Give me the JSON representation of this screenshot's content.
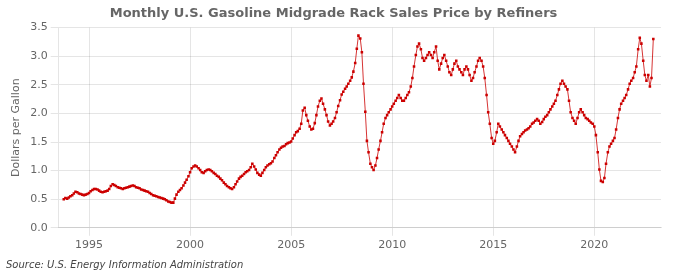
{
  "chart_data": {
    "type": "line",
    "title": "Monthly U.S. Gasoline Midgrade Rack Sales Price by Refiners",
    "y_label": "Dollars per Gallon",
    "annotations": [
      "Source: U.S. Energy Information Administration"
    ],
    "color": "#cc0000",
    "marker": "square",
    "line_style": "solid",
    "grid": true,
    "xlim": [
      1993.5,
      2023.3
    ],
    "xticks": [
      1995,
      2000,
      2005,
      2010,
      2015,
      2020
    ],
    "ylim": [
      0.0,
      3.5
    ],
    "yticks": [
      {
        "value": 0.0,
        "label": "0.0"
      },
      0.5,
      {
        "value": 1.0,
        "label": "1.0"
      },
      1.5,
      {
        "value": 2.0,
        "label": "2.0"
      },
      2.5,
      {
        "value": 3.0,
        "label": "3.0"
      },
      3.5
    ],
    "x": [
      1993.75,
      1993.83,
      1993.92,
      1994.0,
      1994.08,
      1994.17,
      1994.25,
      1994.33,
      1994.42,
      1994.5,
      1994.58,
      1994.67,
      1994.75,
      1994.83,
      1994.92,
      1995.0,
      1995.08,
      1995.17,
      1995.25,
      1995.33,
      1995.42,
      1995.5,
      1995.58,
      1995.67,
      1995.75,
      1995.83,
      1995.92,
      1996.0,
      1996.08,
      1996.17,
      1996.25,
      1996.33,
      1996.42,
      1996.5,
      1996.58,
      1996.67,
      1996.75,
      1996.83,
      1996.92,
      1997.0,
      1997.08,
      1997.17,
      1997.25,
      1997.33,
      1997.42,
      1997.5,
      1997.58,
      1997.67,
      1997.75,
      1997.83,
      1997.92,
      1998.0,
      1998.08,
      1998.17,
      1998.25,
      1998.33,
      1998.42,
      1998.5,
      1998.58,
      1998.67,
      1998.75,
      1998.83,
      1998.92,
      1999.0,
      1999.08,
      1999.17,
      1999.25,
      1999.33,
      1999.42,
      1999.5,
      1999.58,
      1999.67,
      1999.75,
      1999.83,
      1999.92,
      2000.0,
      2000.08,
      2000.17,
      2000.25,
      2000.33,
      2000.42,
      2000.5,
      2000.58,
      2000.67,
      2000.75,
      2000.83,
      2000.92,
      2001.0,
      2001.08,
      2001.17,
      2001.25,
      2001.33,
      2001.42,
      2001.5,
      2001.58,
      2001.67,
      2001.75,
      2001.83,
      2001.92,
      2002.0,
      2002.08,
      2002.17,
      2002.25,
      2002.33,
      2002.42,
      2002.5,
      2002.58,
      2002.67,
      2002.75,
      2002.83,
      2002.92,
      2003.0,
      2003.08,
      2003.17,
      2003.25,
      2003.33,
      2003.42,
      2003.5,
      2003.58,
      2003.67,
      2003.75,
      2003.83,
      2003.92,
      2004.0,
      2004.08,
      2004.17,
      2004.25,
      2004.33,
      2004.42,
      2004.5,
      2004.58,
      2004.67,
      2004.75,
      2004.83,
      2004.92,
      2005.0,
      2005.08,
      2005.17,
      2005.25,
      2005.33,
      2005.42,
      2005.5,
      2005.58,
      2005.67,
      2005.75,
      2005.83,
      2005.92,
      2006.0,
      2006.08,
      2006.17,
      2006.25,
      2006.33,
      2006.42,
      2006.5,
      2006.58,
      2006.67,
      2006.75,
      2006.83,
      2006.92,
      2007.0,
      2007.08,
      2007.17,
      2007.25,
      2007.33,
      2007.42,
      2007.5,
      2007.58,
      2007.67,
      2007.75,
      2007.83,
      2007.92,
      2008.0,
      2008.08,
      2008.17,
      2008.25,
      2008.33,
      2008.42,
      2008.5,
      2008.58,
      2008.67,
      2008.75,
      2008.83,
      2008.92,
      2009.0,
      2009.08,
      2009.17,
      2009.25,
      2009.33,
      2009.42,
      2009.5,
      2009.58,
      2009.67,
      2009.75,
      2009.83,
      2009.92,
      2010.0,
      2010.08,
      2010.17,
      2010.25,
      2010.33,
      2010.42,
      2010.5,
      2010.58,
      2010.67,
      2010.75,
      2010.83,
      2010.92,
      2011.0,
      2011.08,
      2011.17,
      2011.25,
      2011.33,
      2011.42,
      2011.5,
      2011.58,
      2011.67,
      2011.75,
      2011.83,
      2011.92,
      2012.0,
      2012.08,
      2012.17,
      2012.25,
      2012.33,
      2012.42,
      2012.5,
      2012.58,
      2012.67,
      2012.75,
      2012.83,
      2012.92,
      2013.0,
      2013.08,
      2013.17,
      2013.25,
      2013.33,
      2013.42,
      2013.5,
      2013.58,
      2013.67,
      2013.75,
      2013.83,
      2013.92,
      2014.0,
      2014.08,
      2014.17,
      2014.25,
      2014.33,
      2014.42,
      2014.5,
      2014.58,
      2014.67,
      2014.75,
      2014.83,
      2014.92,
      2015.0,
      2015.08,
      2015.17,
      2015.25,
      2015.33,
      2015.42,
      2015.5,
      2015.58,
      2015.67,
      2015.75,
      2015.83,
      2015.92,
      2016.0,
      2016.08,
      2016.17,
      2016.25,
      2016.33,
      2016.42,
      2016.5,
      2016.58,
      2016.67,
      2016.75,
      2016.83,
      2016.92,
      2017.0,
      2017.08,
      2017.17,
      2017.25,
      2017.33,
      2017.42,
      2017.5,
      2017.58,
      2017.67,
      2017.75,
      2017.83,
      2017.92,
      2018.0,
      2018.08,
      2018.17,
      2018.25,
      2018.33,
      2018.42,
      2018.5,
      2018.58,
      2018.67,
      2018.75,
      2018.83,
      2018.92,
      2019.0,
      2019.08,
      2019.17,
      2019.25,
      2019.33,
      2019.42,
      2019.5,
      2019.58,
      2019.67,
      2019.75,
      2019.83,
      2019.92,
      2020.0,
      2020.08,
      2020.17,
      2020.25,
      2020.33,
      2020.42,
      2020.5,
      2020.58,
      2020.67,
      2020.75,
      2020.83,
      2020.92,
      2021.0,
      2021.08,
      2021.17,
      2021.25,
      2021.33,
      2021.42,
      2021.5,
      2021.58,
      2021.67,
      2021.75,
      2021.83,
      2021.92,
      2022.0,
      2022.08,
      2022.17,
      2022.25,
      2022.33,
      2022.42,
      2022.5,
      2022.58,
      2022.67,
      2022.75,
      2022.83,
      2022.92
    ],
    "values": [
      0.5,
      0.52,
      0.51,
      0.53,
      0.55,
      0.57,
      0.6,
      0.63,
      0.62,
      0.6,
      0.59,
      0.58,
      0.57,
      0.58,
      0.59,
      0.61,
      0.64,
      0.66,
      0.68,
      0.68,
      0.67,
      0.65,
      0.63,
      0.62,
      0.63,
      0.64,
      0.65,
      0.68,
      0.73,
      0.76,
      0.75,
      0.73,
      0.71,
      0.7,
      0.69,
      0.68,
      0.69,
      0.7,
      0.71,
      0.72,
      0.73,
      0.74,
      0.73,
      0.71,
      0.7,
      0.69,
      0.67,
      0.66,
      0.65,
      0.64,
      0.63,
      0.61,
      0.59,
      0.57,
      0.56,
      0.55,
      0.54,
      0.53,
      0.52,
      0.51,
      0.5,
      0.48,
      0.46,
      0.45,
      0.44,
      0.44,
      0.51,
      0.58,
      0.63,
      0.66,
      0.69,
      0.74,
      0.79,
      0.84,
      0.9,
      0.97,
      1.04,
      1.07,
      1.09,
      1.07,
      1.04,
      1.01,
      0.97,
      0.96,
      0.99,
      1.01,
      1.02,
      1.01,
      0.99,
      0.96,
      0.94,
      0.91,
      0.89,
      0.86,
      0.83,
      0.79,
      0.76,
      0.73,
      0.71,
      0.69,
      0.68,
      0.71,
      0.76,
      0.81,
      0.86,
      0.89,
      0.91,
      0.94,
      0.97,
      0.99,
      1.01,
      1.06,
      1.12,
      1.07,
      1.02,
      0.96,
      0.93,
      0.91,
      0.96,
      1.01,
      1.06,
      1.09,
      1.11,
      1.13,
      1.16,
      1.22,
      1.27,
      1.32,
      1.37,
      1.4,
      1.42,
      1.43,
      1.46,
      1.48,
      1.49,
      1.51,
      1.56,
      1.62,
      1.67,
      1.69,
      1.73,
      1.82,
      2.05,
      2.1,
      1.97,
      1.87,
      1.77,
      1.72,
      1.73,
      1.83,
      1.97,
      2.12,
      2.22,
      2.26,
      2.17,
      2.07,
      1.97,
      1.86,
      1.79,
      1.82,
      1.86,
      1.92,
      2.02,
      2.13,
      2.23,
      2.33,
      2.38,
      2.43,
      2.47,
      2.52,
      2.57,
      2.63,
      2.73,
      2.88,
      3.13,
      3.36,
      3.31,
      3.07,
      2.52,
      2.03,
      1.52,
      1.32,
      1.12,
      1.06,
      1.01,
      1.09,
      1.22,
      1.37,
      1.52,
      1.67,
      1.82,
      1.92,
      1.97,
      2.02,
      2.07,
      2.12,
      2.17,
      2.22,
      2.27,
      2.32,
      2.27,
      2.22,
      2.22,
      2.27,
      2.32,
      2.37,
      2.47,
      2.62,
      2.82,
      3.02,
      3.17,
      3.22,
      3.12,
      2.97,
      2.92,
      2.97,
      3.02,
      3.07,
      3.02,
      2.97,
      3.07,
      3.17,
      2.92,
      2.77,
      2.87,
      2.97,
      3.02,
      2.92,
      2.82,
      2.72,
      2.67,
      2.77,
      2.87,
      2.92,
      2.82,
      2.77,
      2.72,
      2.67,
      2.77,
      2.82,
      2.77,
      2.67,
      2.57,
      2.62,
      2.72,
      2.82,
      2.92,
      2.97,
      2.92,
      2.82,
      2.62,
      2.32,
      2.02,
      1.82,
      1.57,
      1.47,
      1.52,
      1.67,
      1.82,
      1.77,
      1.72,
      1.67,
      1.62,
      1.57,
      1.52,
      1.47,
      1.42,
      1.37,
      1.32,
      1.42,
      1.52,
      1.6,
      1.64,
      1.67,
      1.7,
      1.72,
      1.74,
      1.77,
      1.82,
      1.84,
      1.87,
      1.9,
      1.87,
      1.82,
      1.85,
      1.9,
      1.94,
      1.97,
      2.02,
      2.07,
      2.12,
      2.17,
      2.22,
      2.32,
      2.42,
      2.52,
      2.57,
      2.52,
      2.47,
      2.42,
      2.22,
      2.02,
      1.92,
      1.87,
      1.82,
      1.92,
      2.02,
      2.07,
      2.02,
      1.97,
      1.92,
      1.9,
      1.87,
      1.84,
      1.82,
      1.77,
      1.62,
      1.32,
      1.02,
      0.82,
      0.8,
      0.87,
      1.12,
      1.32,
      1.42,
      1.47,
      1.52,
      1.57,
      1.72,
      1.92,
      2.07,
      2.17,
      2.22,
      2.27,
      2.32,
      2.42,
      2.52,
      2.57,
      2.62,
      2.72,
      2.82,
      3.12,
      3.32,
      3.22,
      2.92,
      2.67,
      2.57,
      2.67,
      2.47,
      2.62,
      3.3
    ]
  }
}
